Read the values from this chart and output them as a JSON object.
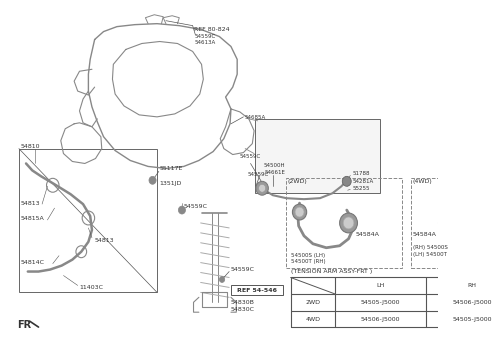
{
  "bg_color": "#ffffff",
  "table_title": "(TENSION ARM ASSY-FRT )",
  "table_headers": [
    "",
    "LH",
    "RH"
  ],
  "table_rows": [
    [
      "2WD",
      "54505-J5000",
      "54506-J5000"
    ],
    [
      "4WD",
      "54506-J5000",
      "54505-J5000"
    ]
  ],
  "fr_label": "FR",
  "tc": "#333333",
  "lc": "#777777"
}
